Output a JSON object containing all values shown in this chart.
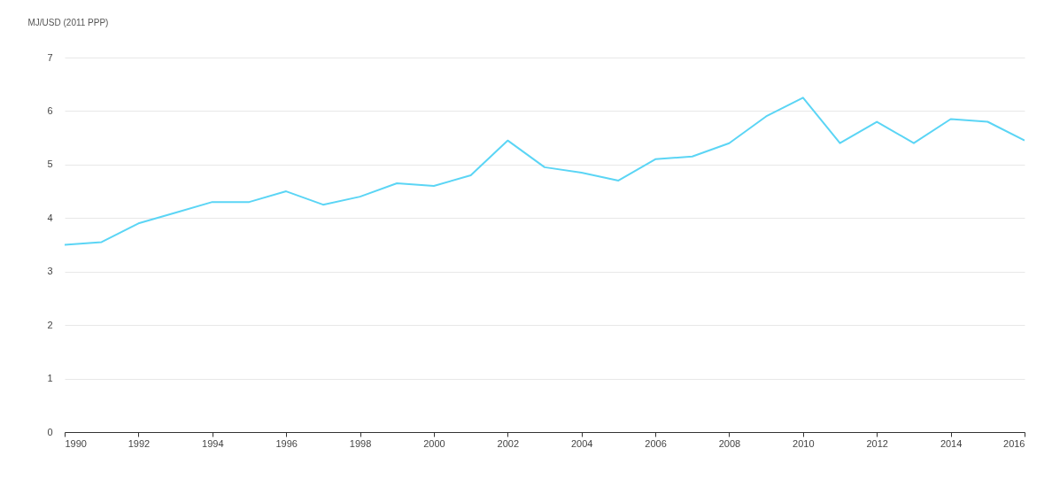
{
  "chart_data": {
    "type": "line",
    "ylabel": "MJ/USD (2011 PPP)",
    "x": [
      1990,
      1991,
      1992,
      1993,
      1994,
      1995,
      1996,
      1997,
      1998,
      1999,
      2000,
      2001,
      2002,
      2003,
      2004,
      2005,
      2006,
      2007,
      2008,
      2009,
      2010,
      2011,
      2012,
      2013,
      2014,
      2015,
      2016
    ],
    "series": [
      {
        "color": "#5bd5f5",
        "values": [
          3.5,
          3.55,
          3.9,
          4.1,
          4.3,
          4.3,
          4.5,
          4.25,
          4.4,
          4.65,
          4.6,
          4.8,
          5.45,
          4.95,
          4.85,
          4.7,
          5.1,
          5.15,
          5.4,
          5.9,
          6.25,
          5.4,
          5.8,
          5.4,
          5.85,
          5.8,
          5.45
        ]
      }
    ],
    "xlim": [
      1990,
      2016
    ],
    "xticks": [
      1990,
      1992,
      1994,
      1996,
      1998,
      2000,
      2002,
      2004,
      2006,
      2008,
      2010,
      2012,
      2014,
      2016
    ],
    "ylim": [
      0,
      7
    ],
    "yticks": [
      0,
      1,
      2,
      3,
      4,
      5,
      6,
      7
    ],
    "grid": "y",
    "marker": "none",
    "line_style": "solid"
  }
}
